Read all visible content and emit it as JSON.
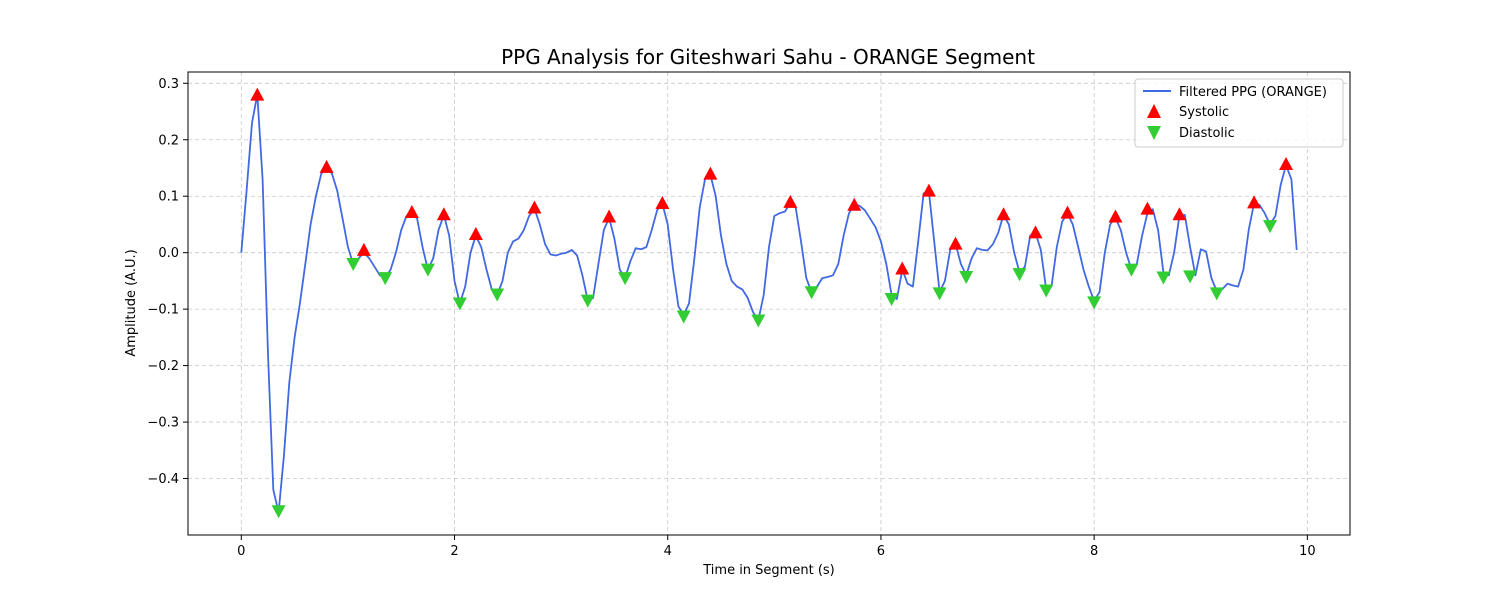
{
  "chart_data": {
    "type": "line",
    "title": "PPG Analysis for Giteshwari Sahu - ORANGE Segment",
    "xlabel": "Time in Segment (s)",
    "ylabel": "Amplitude (A.U.)",
    "xlim": [
      -0.5,
      10.4
    ],
    "ylim": [
      -0.5,
      0.32
    ],
    "xticks": [
      0,
      2,
      4,
      6,
      8,
      10
    ],
    "xtick_labels": [
      "0",
      "2",
      "4",
      "6",
      "8",
      "10"
    ],
    "yticks": [
      0.3,
      0.2,
      0.1,
      0.0,
      -0.1,
      -0.2,
      -0.3,
      -0.4
    ],
    "ytick_labels": [
      "0.3",
      "0.2",
      "0.1",
      "0.0",
      "−0.1",
      "−0.2",
      "−0.3",
      "−0.4"
    ],
    "grid": true,
    "legend_position": "top-right",
    "colors": {
      "line": "#4169e1",
      "systolic": "#ff0000",
      "diastolic": "#32cd32"
    },
    "series": [
      {
        "name": "Filtered PPG (ORANGE)",
        "kind": "line",
        "points": [
          [
            0.0,
            0.0
          ],
          [
            0.05,
            0.11
          ],
          [
            0.1,
            0.23
          ],
          [
            0.15,
            0.28
          ],
          [
            0.2,
            0.13
          ],
          [
            0.25,
            -0.18
          ],
          [
            0.3,
            -0.42
          ],
          [
            0.35,
            -0.46
          ],
          [
            0.4,
            -0.36
          ],
          [
            0.45,
            -0.23
          ],
          [
            0.5,
            -0.15
          ],
          [
            0.55,
            -0.09
          ],
          [
            0.6,
            -0.02
          ],
          [
            0.65,
            0.05
          ],
          [
            0.7,
            0.1
          ],
          [
            0.75,
            0.14
          ],
          [
            0.8,
            0.15
          ],
          [
            0.85,
            0.14
          ],
          [
            0.9,
            0.11
          ],
          [
            0.95,
            0.06
          ],
          [
            1.0,
            0.01
          ],
          [
            1.05,
            -0.02
          ],
          [
            1.1,
            -0.01
          ],
          [
            1.15,
            0.0
          ],
          [
            1.2,
            -0.01
          ],
          [
            1.25,
            -0.025
          ],
          [
            1.3,
            -0.04
          ],
          [
            1.35,
            -0.045
          ],
          [
            1.4,
            -0.03
          ],
          [
            1.45,
            0.0
          ],
          [
            1.5,
            0.04
          ],
          [
            1.55,
            0.065
          ],
          [
            1.6,
            0.07
          ],
          [
            1.65,
            0.06
          ],
          [
            1.7,
            0.01
          ],
          [
            1.75,
            -0.03
          ],
          [
            1.8,
            -0.01
          ],
          [
            1.85,
            0.04
          ],
          [
            1.9,
            0.067
          ],
          [
            1.95,
            0.03
          ],
          [
            2.0,
            -0.05
          ],
          [
            2.05,
            -0.09
          ],
          [
            2.1,
            -0.06
          ],
          [
            2.15,
            0.0
          ],
          [
            2.2,
            0.03
          ],
          [
            2.25,
            0.01
          ],
          [
            2.3,
            -0.03
          ],
          [
            2.35,
            -0.065
          ],
          [
            2.4,
            -0.075
          ],
          [
            2.45,
            -0.05
          ],
          [
            2.5,
            0.0
          ],
          [
            2.55,
            0.02
          ],
          [
            2.6,
            0.025
          ],
          [
            2.65,
            0.04
          ],
          [
            2.7,
            0.065
          ],
          [
            2.75,
            0.078
          ],
          [
            2.8,
            0.05
          ],
          [
            2.85,
            0.015
          ],
          [
            2.9,
            -0.003
          ],
          [
            2.95,
            -0.005
          ],
          [
            3.0,
            -0.002
          ],
          [
            3.05,
            0.0
          ],
          [
            3.1,
            0.005
          ],
          [
            3.15,
            -0.005
          ],
          [
            3.2,
            -0.04
          ],
          [
            3.25,
            -0.085
          ],
          [
            3.3,
            -0.08
          ],
          [
            3.35,
            -0.02
          ],
          [
            3.4,
            0.04
          ],
          [
            3.45,
            0.062
          ],
          [
            3.5,
            0.025
          ],
          [
            3.55,
            -0.03
          ],
          [
            3.6,
            -0.045
          ],
          [
            3.65,
            -0.015
          ],
          [
            3.7,
            0.008
          ],
          [
            3.75,
            0.006
          ],
          [
            3.8,
            0.01
          ],
          [
            3.85,
            0.04
          ],
          [
            3.9,
            0.075
          ],
          [
            3.95,
            0.087
          ],
          [
            4.0,
            0.05
          ],
          [
            4.05,
            -0.03
          ],
          [
            4.1,
            -0.095
          ],
          [
            4.15,
            -0.11
          ],
          [
            4.2,
            -0.09
          ],
          [
            4.25,
            -0.01
          ],
          [
            4.3,
            0.08
          ],
          [
            4.35,
            0.13
          ],
          [
            4.4,
            0.138
          ],
          [
            4.45,
            0.1
          ],
          [
            4.5,
            0.03
          ],
          [
            4.55,
            -0.02
          ],
          [
            4.6,
            -0.05
          ],
          [
            4.65,
            -0.06
          ],
          [
            4.7,
            -0.065
          ],
          [
            4.75,
            -0.08
          ],
          [
            4.8,
            -0.105
          ],
          [
            4.85,
            -0.12
          ],
          [
            4.9,
            -0.075
          ],
          [
            4.95,
            0.01
          ],
          [
            5.0,
            0.065
          ],
          [
            5.05,
            0.07
          ],
          [
            5.1,
            0.073
          ],
          [
            5.15,
            0.088
          ],
          [
            5.2,
            0.08
          ],
          [
            5.25,
            0.02
          ],
          [
            5.3,
            -0.045
          ],
          [
            5.35,
            -0.07
          ],
          [
            5.4,
            -0.06
          ],
          [
            5.45,
            -0.045
          ],
          [
            5.5,
            -0.043
          ],
          [
            5.55,
            -0.04
          ],
          [
            5.6,
            -0.02
          ],
          [
            5.65,
            0.03
          ],
          [
            5.7,
            0.07
          ],
          [
            5.75,
            0.085
          ],
          [
            5.8,
            0.083
          ],
          [
            5.85,
            0.075
          ],
          [
            5.9,
            0.06
          ],
          [
            5.95,
            0.045
          ],
          [
            6.0,
            0.02
          ],
          [
            6.05,
            -0.02
          ],
          [
            6.1,
            -0.075
          ],
          [
            6.15,
            -0.082
          ],
          [
            6.2,
            -0.03
          ],
          [
            6.25,
            -0.055
          ],
          [
            6.3,
            -0.06
          ],
          [
            6.35,
            0.02
          ],
          [
            6.4,
            0.105
          ],
          [
            6.45,
            0.108
          ],
          [
            6.5,
            0.02
          ],
          [
            6.55,
            -0.07
          ],
          [
            6.6,
            -0.05
          ],
          [
            6.65,
            0.005
          ],
          [
            6.7,
            0.015
          ],
          [
            6.75,
            -0.02
          ],
          [
            6.8,
            -0.04
          ],
          [
            6.85,
            -0.01
          ],
          [
            6.9,
            0.008
          ],
          [
            6.95,
            0.005
          ],
          [
            7.0,
            0.004
          ],
          [
            7.05,
            0.015
          ],
          [
            7.1,
            0.035
          ],
          [
            7.15,
            0.067
          ],
          [
            7.2,
            0.05
          ],
          [
            7.25,
            0.0
          ],
          [
            7.3,
            -0.035
          ],
          [
            7.35,
            -0.025
          ],
          [
            7.4,
            0.03
          ],
          [
            7.45,
            0.035
          ],
          [
            7.5,
            0.005
          ],
          [
            7.55,
            -0.065
          ],
          [
            7.6,
            -0.06
          ],
          [
            7.65,
            0.01
          ],
          [
            7.7,
            0.055
          ],
          [
            7.75,
            0.07
          ],
          [
            7.8,
            0.05
          ],
          [
            7.85,
            0.01
          ],
          [
            7.9,
            -0.03
          ],
          [
            7.95,
            -0.06
          ],
          [
            8.0,
            -0.085
          ],
          [
            8.05,
            -0.07
          ],
          [
            8.1,
            0.0
          ],
          [
            8.15,
            0.05
          ],
          [
            8.2,
            0.062
          ],
          [
            8.25,
            0.04
          ],
          [
            8.3,
            0.0
          ],
          [
            8.35,
            -0.03
          ],
          [
            8.4,
            -0.02
          ],
          [
            8.45,
            0.03
          ],
          [
            8.5,
            0.07
          ],
          [
            8.55,
            0.077
          ],
          [
            8.6,
            0.04
          ],
          [
            8.65,
            -0.035
          ],
          [
            8.7,
            -0.04
          ],
          [
            8.75,
            0.0
          ],
          [
            8.8,
            0.065
          ],
          [
            8.85,
            0.067
          ],
          [
            8.9,
            0.01
          ],
          [
            8.95,
            -0.04
          ],
          [
            9.0,
            0.006
          ],
          [
            9.05,
            0.002
          ],
          [
            9.1,
            -0.045
          ],
          [
            9.15,
            -0.068
          ],
          [
            9.2,
            -0.065
          ],
          [
            9.25,
            -0.055
          ],
          [
            9.3,
            -0.058
          ],
          [
            9.35,
            -0.06
          ],
          [
            9.4,
            -0.03
          ],
          [
            9.45,
            0.04
          ],
          [
            9.5,
            0.088
          ],
          [
            9.55,
            0.085
          ],
          [
            9.6,
            0.07
          ],
          [
            9.65,
            0.05
          ],
          [
            9.7,
            0.065
          ],
          [
            9.75,
            0.12
          ],
          [
            9.8,
            0.155
          ],
          [
            9.85,
            0.13
          ],
          [
            9.9,
            0.005
          ]
        ]
      },
      {
        "name": "Systolic",
        "kind": "marker-up",
        "points": [
          [
            0.15,
            0.28
          ],
          [
            0.8,
            0.152
          ],
          [
            1.15,
            0.005
          ],
          [
            1.6,
            0.072
          ],
          [
            1.9,
            0.068
          ],
          [
            2.2,
            0.033
          ],
          [
            2.75,
            0.08
          ],
          [
            3.45,
            0.064
          ],
          [
            3.95,
            0.088
          ],
          [
            4.4,
            0.14
          ],
          [
            5.15,
            0.09
          ],
          [
            5.75,
            0.085
          ],
          [
            6.2,
            -0.028
          ],
          [
            6.45,
            0.11
          ],
          [
            6.7,
            0.016
          ],
          [
            7.15,
            0.068
          ],
          [
            7.45,
            0.036
          ],
          [
            7.75,
            0.071
          ],
          [
            8.2,
            0.064
          ],
          [
            8.5,
            0.078
          ],
          [
            8.8,
            0.068
          ],
          [
            9.5,
            0.089
          ],
          [
            9.8,
            0.157
          ]
        ]
      },
      {
        "name": "Diastolic",
        "kind": "marker-down",
        "points": [
          [
            0.35,
            -0.458
          ],
          [
            1.05,
            -0.02
          ],
          [
            1.35,
            -0.045
          ],
          [
            1.75,
            -0.03
          ],
          [
            2.05,
            -0.09
          ],
          [
            2.4,
            -0.074
          ],
          [
            3.25,
            -0.085
          ],
          [
            3.6,
            -0.045
          ],
          [
            4.15,
            -0.113
          ],
          [
            4.85,
            -0.12
          ],
          [
            5.35,
            -0.07
          ],
          [
            6.1,
            -0.082
          ],
          [
            6.55,
            -0.072
          ],
          [
            6.8,
            -0.043
          ],
          [
            7.3,
            -0.038
          ],
          [
            7.55,
            -0.067
          ],
          [
            8.0,
            -0.088
          ],
          [
            8.35,
            -0.03
          ],
          [
            8.65,
            -0.044
          ],
          [
            8.9,
            -0.042
          ],
          [
            9.15,
            -0.072
          ],
          [
            9.65,
            0.047
          ]
        ]
      }
    ]
  }
}
